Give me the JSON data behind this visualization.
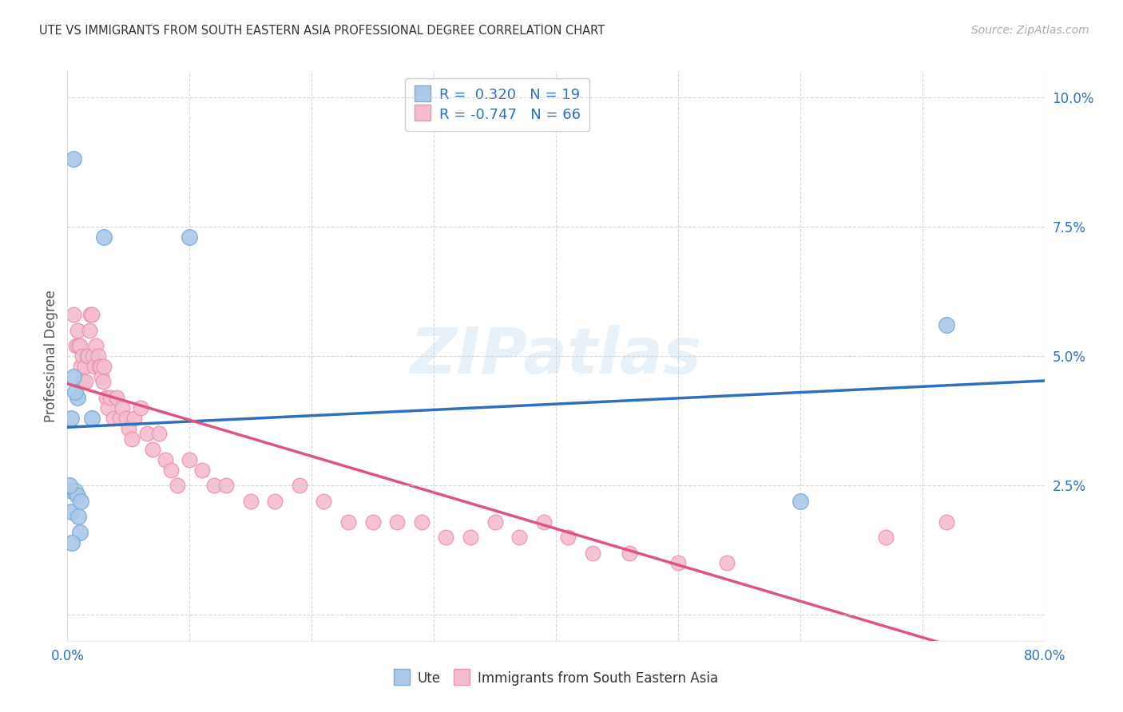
{
  "title": "UTE VS IMMIGRANTS FROM SOUTH EASTERN ASIA PROFESSIONAL DEGREE CORRELATION CHART",
  "source": "Source: ZipAtlas.com",
  "ylabel": "Professional Degree",
  "watermark": "ZIPatlas",
  "xlim": [
    0.0,
    0.8
  ],
  "ylim": [
    -0.005,
    0.105
  ],
  "yticks_right": [
    0.0,
    0.025,
    0.05,
    0.075,
    0.1
  ],
  "yticklabels_right": [
    "",
    "2.5%",
    "5.0%",
    "7.5%",
    "10.0%"
  ],
  "legend_r_values": [
    "0.320",
    "-0.747"
  ],
  "legend_n_values": [
    "19",
    "66"
  ],
  "blue_line_color": "#2d6fbd",
  "pink_line_color": "#e0547a",
  "blue_scatter_color": "#aac8ea",
  "pink_scatter_color": "#f5bcd0",
  "blue_scatter_edge": "#7aadd4",
  "pink_scatter_edge": "#e896b0",
  "grid_color": "#cccccc",
  "background_color": "#ffffff",
  "ute_x": [
    0.005,
    0.03,
    0.1,
    0.004,
    0.006,
    0.003,
    0.008,
    0.009,
    0.011,
    0.01,
    0.008,
    0.006,
    0.005,
    0.02,
    0.72,
    0.004,
    0.6,
    0.002,
    0.003
  ],
  "ute_y": [
    0.088,
    0.073,
    0.073,
    0.024,
    0.024,
    0.02,
    0.023,
    0.019,
    0.022,
    0.016,
    0.042,
    0.043,
    0.046,
    0.038,
    0.056,
    0.014,
    0.022,
    0.025,
    0.038
  ],
  "sea_x": [
    0.005,
    0.007,
    0.008,
    0.009,
    0.01,
    0.011,
    0.012,
    0.013,
    0.014,
    0.015,
    0.016,
    0.017,
    0.018,
    0.019,
    0.02,
    0.021,
    0.022,
    0.023,
    0.025,
    0.026,
    0.027,
    0.028,
    0.029,
    0.03,
    0.032,
    0.033,
    0.035,
    0.038,
    0.04,
    0.043,
    0.045,
    0.048,
    0.05,
    0.053,
    0.055,
    0.06,
    0.065,
    0.07,
    0.075,
    0.08,
    0.085,
    0.09,
    0.1,
    0.11,
    0.12,
    0.13,
    0.15,
    0.17,
    0.19,
    0.21,
    0.23,
    0.25,
    0.27,
    0.29,
    0.31,
    0.33,
    0.35,
    0.37,
    0.39,
    0.41,
    0.43,
    0.46,
    0.5,
    0.54,
    0.67,
    0.72
  ],
  "sea_y": [
    0.058,
    0.052,
    0.055,
    0.052,
    0.052,
    0.048,
    0.05,
    0.045,
    0.048,
    0.045,
    0.05,
    0.05,
    0.055,
    0.058,
    0.058,
    0.05,
    0.048,
    0.052,
    0.05,
    0.048,
    0.048,
    0.046,
    0.045,
    0.048,
    0.042,
    0.04,
    0.042,
    0.038,
    0.042,
    0.038,
    0.04,
    0.038,
    0.036,
    0.034,
    0.038,
    0.04,
    0.035,
    0.032,
    0.035,
    0.03,
    0.028,
    0.025,
    0.03,
    0.028,
    0.025,
    0.025,
    0.022,
    0.022,
    0.025,
    0.022,
    0.018,
    0.018,
    0.018,
    0.018,
    0.015,
    0.015,
    0.018,
    0.015,
    0.018,
    0.015,
    0.012,
    0.012,
    0.01,
    0.01,
    0.015,
    0.018
  ]
}
